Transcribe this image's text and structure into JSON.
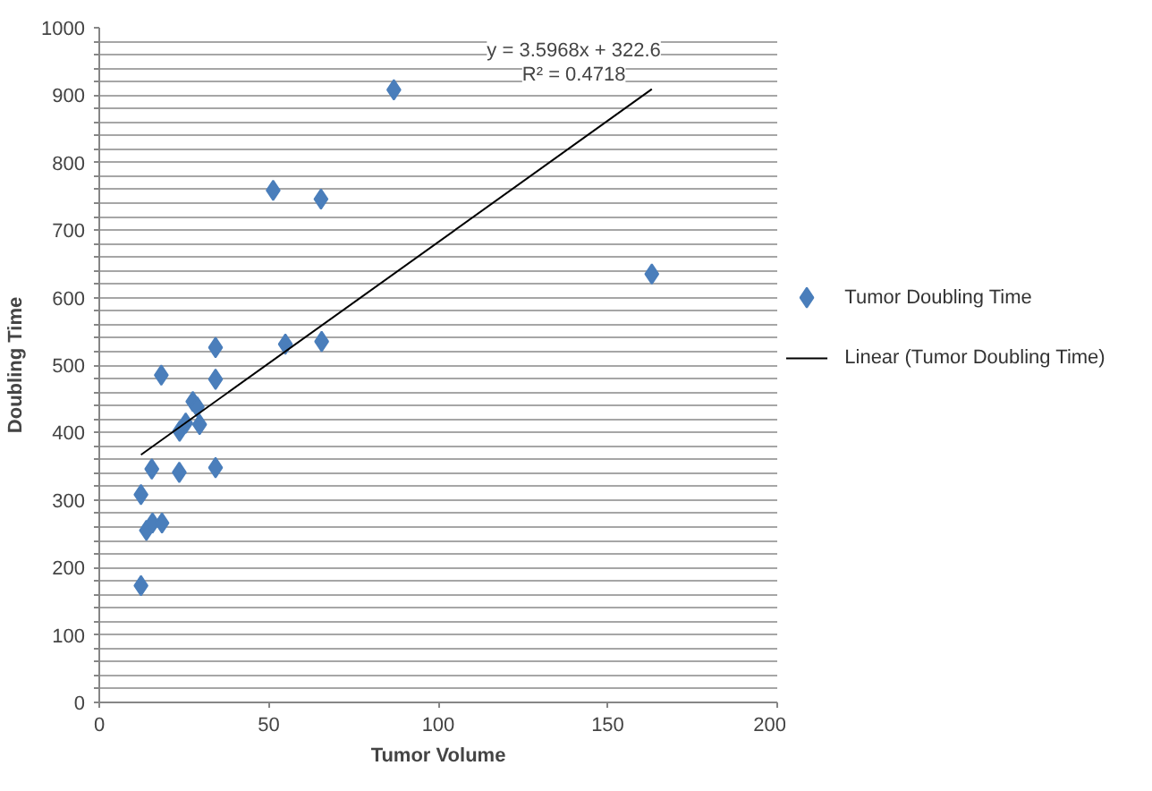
{
  "chart_data": {
    "type": "scatter",
    "xlabel": "Tumor Volume",
    "ylabel": "Doubling Time",
    "series": [
      {
        "name": "Tumor Doubling Time",
        "color": "#4a7ebb",
        "marker": "diamond",
        "x": [
          12.3,
          12.3,
          13.9,
          15.7,
          18.5,
          15.5,
          18.3,
          23.6,
          23.7,
          25.5,
          27.6,
          28.9,
          29.6,
          34.3,
          34.3,
          34.3,
          54.9,
          65.6,
          86.9,
          51.3,
          65.4,
          163
        ],
        "values": [
          173,
          308,
          255,
          266,
          266,
          346,
          485,
          341,
          402,
          414,
          446,
          438,
          412,
          526,
          479,
          348,
          531,
          535,
          908,
          759,
          746,
          635
        ]
      },
      {
        "name": "Linear (Tumor Doubling Time)",
        "type": "line",
        "color": "#000000",
        "marker": "none",
        "line_style": "solid",
        "x": [
          12.3,
          163
        ],
        "values": [
          367,
          909
        ]
      }
    ],
    "annotations": [
      "y = 3.5968x + 322.6",
      "R² = 0.4718"
    ],
    "xlim": [
      0,
      200
    ],
    "xticks": [
      0,
      50,
      100,
      150,
      200
    ],
    "ylim": [
      0,
      1000
    ],
    "yticks": [
      0,
      {
        "value": 20,
        "label": null
      },
      {
        "value": 40,
        "label": null
      },
      {
        "value": 60,
        "label": null
      },
      {
        "value": 80,
        "label": null
      },
      100,
      {
        "value": 120,
        "label": null
      },
      {
        "value": 140,
        "label": null
      },
      {
        "value": 160,
        "label": null
      },
      {
        "value": 180,
        "label": null
      },
      200,
      {
        "value": 220,
        "label": null
      },
      {
        "value": 240,
        "label": null
      },
      {
        "value": 260,
        "label": null
      },
      {
        "value": 280,
        "label": null
      },
      300,
      {
        "value": 320,
        "label": null
      },
      {
        "value": 340,
        "label": null
      },
      {
        "value": 360,
        "label": null
      },
      {
        "value": 380,
        "label": null
      },
      400,
      {
        "value": 420,
        "label": null
      },
      {
        "value": 440,
        "label": null
      },
      {
        "value": 460,
        "label": null
      },
      {
        "value": 480,
        "label": null
      },
      500,
      {
        "value": 520,
        "label": null
      },
      {
        "value": 540,
        "label": null
      },
      {
        "value": 560,
        "label": null
      },
      {
        "value": 580,
        "label": null
      },
      600,
      {
        "value": 620,
        "label": null
      },
      {
        "value": 640,
        "label": null
      },
      {
        "value": 660,
        "label": null
      },
      {
        "value": 680,
        "label": null
      },
      700,
      {
        "value": 720,
        "label": null
      },
      {
        "value": 740,
        "label": null
      },
      {
        "value": 760,
        "label": null
      },
      {
        "value": 780,
        "label": null
      },
      800,
      {
        "value": 820,
        "label": null
      },
      {
        "value": 840,
        "label": null
      },
      {
        "value": 860,
        "label": null
      },
      {
        "value": 880,
        "label": null
      },
      900,
      {
        "value": 920,
        "label": null
      },
      {
        "value": 940,
        "label": null
      },
      {
        "value": 960,
        "label": null
      },
      {
        "value": 980,
        "label": null
      },
      1000
    ],
    "grid": "y",
    "legend": "right"
  }
}
